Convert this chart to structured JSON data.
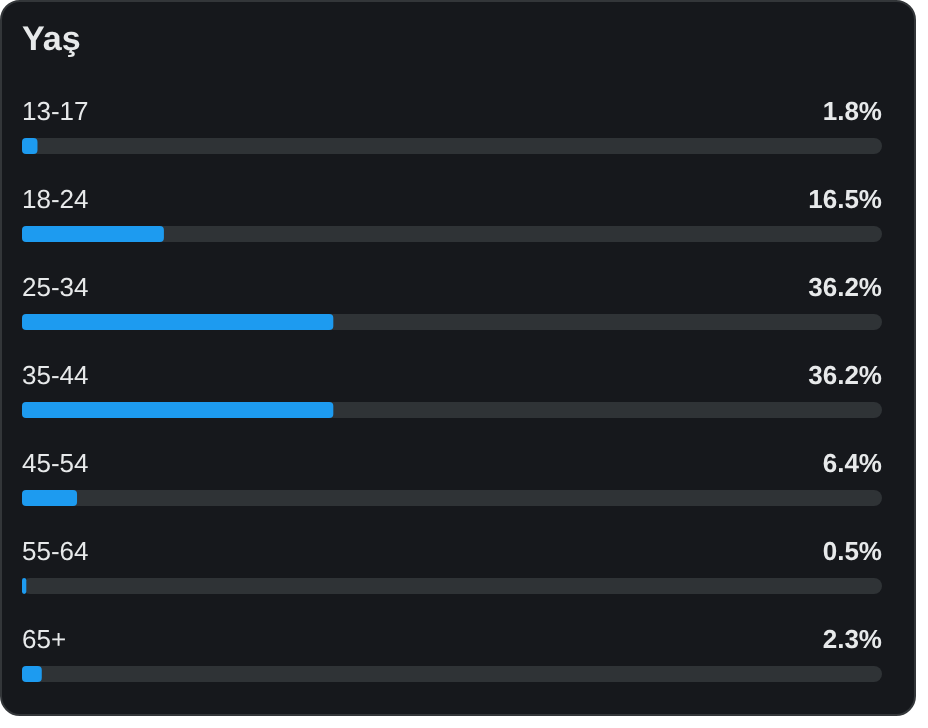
{
  "chart_data": {
    "type": "bar",
    "orientation": "horizontal",
    "title": "Yaş",
    "categories": [
      "13-17",
      "18-24",
      "25-34",
      "35-44",
      "45-54",
      "55-64",
      "65+"
    ],
    "values": [
      1.8,
      16.5,
      36.2,
      36.2,
      6.4,
      0.5,
      2.3
    ],
    "value_labels": [
      "1.8%",
      "16.5%",
      "36.2%",
      "36.2%",
      "6.4%",
      "0.5%",
      "2.3%"
    ],
    "color": "#1d9bf0",
    "xlim": [
      0,
      100
    ],
    "tick_labels": false,
    "grid": false,
    "legend": false
  }
}
